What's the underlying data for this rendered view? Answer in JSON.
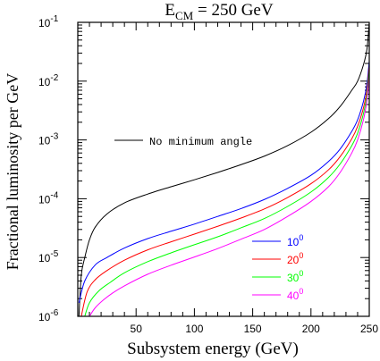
{
  "chart_data": {
    "type": "line",
    "title": {
      "prefix": "E",
      "subscript": "CM",
      "suffix": " = 250 GeV"
    },
    "xlabel": "Subsystem energy (GeV)",
    "ylabel": "Fractional luminosity per GeV",
    "xlim": [
      0,
      250
    ],
    "ylim": [
      1e-06,
      0.1
    ],
    "yscale": "log",
    "x_ticks": [
      {
        "value": 50,
        "label": "50"
      },
      {
        "value": 100,
        "label": "100"
      },
      {
        "value": 150,
        "label": "150"
      },
      {
        "value": 200,
        "label": "200"
      },
      {
        "value": 250,
        "label": "250"
      }
    ],
    "y_ticks": [
      {
        "value": 1e-06,
        "base": "10",
        "exp": "-6"
      },
      {
        "value": 1e-05,
        "base": "10",
        "exp": "-5"
      },
      {
        "value": 0.0001,
        "base": "10",
        "exp": "-4"
      },
      {
        "value": 0.001,
        "base": "10",
        "exp": "-3"
      },
      {
        "value": 0.01,
        "base": "10",
        "exp": "-2"
      },
      {
        "value": 0.1,
        "base": "10",
        "exp": "-1"
      }
    ],
    "legend_placement": "bottom-right",
    "series": [
      {
        "name": "No minimum angle",
        "color": "#000000",
        "points": [
          [
            1,
            1e-06
          ],
          [
            3,
            5e-06
          ],
          [
            6,
            1e-05
          ],
          [
            10,
            2e-05
          ],
          [
            15,
            3.3e-05
          ],
          [
            25,
            5.5e-05
          ],
          [
            40,
            8.5e-05
          ],
          [
            60,
            0.00012
          ],
          [
            80,
            0.00016
          ],
          [
            100,
            0.00021
          ],
          [
            120,
            0.00028
          ],
          [
            140,
            0.00038
          ],
          [
            160,
            0.00053
          ],
          [
            180,
            0.0008
          ],
          [
            200,
            0.00135
          ],
          [
            215,
            0.0023
          ],
          [
            225,
            0.0037
          ],
          [
            235,
            0.007
          ],
          [
            240,
            0.01
          ],
          [
            245,
            0.019
          ],
          [
            248,
            0.035
          ],
          [
            250,
            0.1
          ]
        ]
      },
      {
        "name": "10",
        "name_sup": "0",
        "color": "#0000ff",
        "points": [
          [
            1,
            1.7e-06
          ],
          [
            6,
            4e-06
          ],
          [
            15,
            7.5e-06
          ],
          [
            25,
            1e-05
          ],
          [
            40,
            1.45e-05
          ],
          [
            60,
            2.1e-05
          ],
          [
            80,
            2.8e-05
          ],
          [
            100,
            3.7e-05
          ],
          [
            120,
            5e-05
          ],
          [
            140,
            6.8e-05
          ],
          [
            160,
            9.7e-05
          ],
          [
            180,
            0.00015
          ],
          [
            200,
            0.00025
          ],
          [
            215,
            0.00043
          ],
          [
            225,
            0.0007
          ],
          [
            235,
            0.0014
          ],
          [
            240,
            0.0022
          ],
          [
            245,
            0.0045
          ],
          [
            248,
            0.009
          ],
          [
            250,
            0.022
          ]
        ]
      },
      {
        "name": "20",
        "name_sup": "0",
        "color": "#ff0000",
        "points": [
          [
            3,
            1e-06
          ],
          [
            8,
            2.6e-06
          ],
          [
            15,
            4.2e-06
          ],
          [
            25,
            6e-06
          ],
          [
            40,
            9e-06
          ],
          [
            60,
            1.35e-05
          ],
          [
            80,
            1.85e-05
          ],
          [
            100,
            2.5e-05
          ],
          [
            120,
            3.4e-05
          ],
          [
            140,
            4.7e-05
          ],
          [
            160,
            6.7e-05
          ],
          [
            180,
            0.000105
          ],
          [
            200,
            0.00018
          ],
          [
            215,
            0.00031
          ],
          [
            225,
            0.00052
          ],
          [
            235,
            0.00105
          ],
          [
            240,
            0.0017
          ],
          [
            245,
            0.0035
          ],
          [
            248,
            0.007
          ],
          [
            250,
            0.018
          ]
        ]
      },
      {
        "name": "30",
        "name_sup": "0",
        "color": "#00ff00",
        "points": [
          [
            6,
            1e-06
          ],
          [
            10,
            1.7e-06
          ],
          [
            18,
            2.7e-06
          ],
          [
            28,
            3.8e-06
          ],
          [
            40,
            5.5e-06
          ],
          [
            60,
            8.5e-06
          ],
          [
            80,
            1.2e-05
          ],
          [
            100,
            1.65e-05
          ],
          [
            120,
            2.25e-05
          ],
          [
            140,
            3.2e-05
          ],
          [
            160,
            4.6e-05
          ],
          [
            180,
            7.4e-05
          ],
          [
            200,
            0.00013
          ],
          [
            215,
            0.00023
          ],
          [
            225,
            0.00039
          ],
          [
            235,
            0.0008
          ],
          [
            240,
            0.0013
          ],
          [
            245,
            0.0028
          ],
          [
            248,
            0.0058
          ],
          [
            250,
            0.015
          ]
        ]
      },
      {
        "name": "40",
        "name_sup": "0",
        "color": "#ff00ff",
        "points": [
          [
            10,
            1e-06
          ],
          [
            15,
            1.4e-06
          ],
          [
            22,
            1.9e-06
          ],
          [
            30,
            2.5e-06
          ],
          [
            40,
            3.3e-06
          ],
          [
            60,
            5.2e-06
          ],
          [
            80,
            7.4e-06
          ],
          [
            100,
            1.02e-05
          ],
          [
            120,
            1.42e-05
          ],
          [
            140,
            2.05e-05
          ],
          [
            160,
            3e-05
          ],
          [
            180,
            5e-05
          ],
          [
            200,
            9e-05
          ],
          [
            215,
            0.00016
          ],
          [
            225,
            0.00028
          ],
          [
            235,
            0.0006
          ],
          [
            240,
            0.001
          ],
          [
            245,
            0.0022
          ],
          [
            248,
            0.0048
          ],
          [
            250,
            0.012
          ]
        ]
      }
    ]
  }
}
